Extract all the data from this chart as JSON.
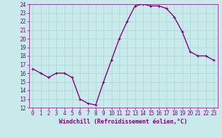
{
  "x": [
    0,
    1,
    2,
    3,
    4,
    5,
    6,
    7,
    8,
    9,
    10,
    11,
    12,
    13,
    14,
    15,
    16,
    17,
    18,
    19,
    20,
    21,
    22,
    23
  ],
  "y": [
    16.5,
    16.0,
    15.5,
    16.0,
    16.0,
    15.5,
    13.0,
    12.5,
    12.3,
    15.0,
    17.5,
    20.0,
    22.0,
    23.8,
    24.0,
    23.8,
    23.8,
    23.5,
    22.5,
    20.8,
    18.5,
    18.0,
    18.0,
    17.5
  ],
  "line_color": "#800080",
  "marker": "+",
  "marker_size": 3,
  "bg_color": "#c8eaea",
  "grid_color": "#b0d8d8",
  "xlabel": "Windchill (Refroidissement éolien,°C)",
  "xlabel_color": "#800080",
  "tick_color": "#800080",
  "ylim": [
    12,
    24
  ],
  "xlim_min": -0.5,
  "xlim_max": 23.5,
  "yticks": [
    12,
    13,
    14,
    15,
    16,
    17,
    18,
    19,
    20,
    21,
    22,
    23,
    24
  ],
  "xticks": [
    0,
    1,
    2,
    3,
    4,
    5,
    6,
    7,
    8,
    9,
    10,
    11,
    12,
    13,
    14,
    15,
    16,
    17,
    18,
    19,
    20,
    21,
    22,
    23
  ],
  "tick_fontsize": 5.5,
  "xlabel_fontsize": 6.0,
  "line_width": 1.0
}
